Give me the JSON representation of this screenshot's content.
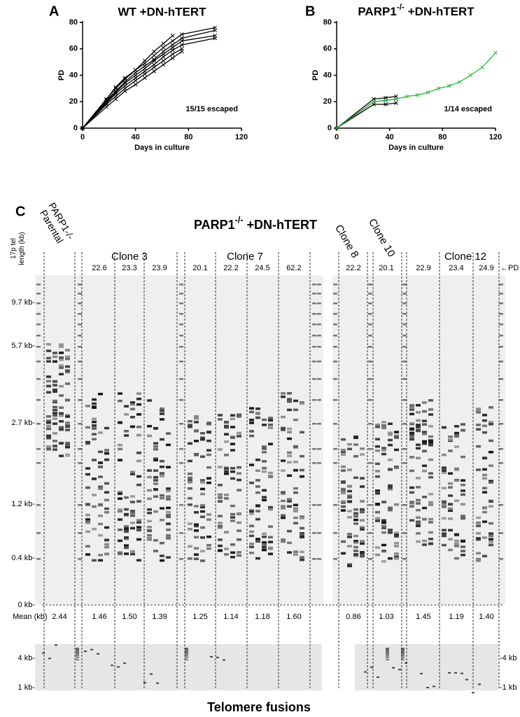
{
  "chart_data": [
    {
      "type": "line",
      "panel_label": "A",
      "title": "WT +DN-hTERT",
      "x_label": "Days in culture",
      "y_label": "PD",
      "annotation": "15/15 escaped",
      "x": [
        0,
        18,
        25,
        32,
        40,
        47,
        54,
        61,
        68,
        75,
        100
      ],
      "xlim": [
        0,
        120
      ],
      "xticks": [
        0,
        40,
        80,
        120
      ],
      "ylim": [
        0,
        80
      ],
      "yticks": [
        0,
        20,
        40,
        60,
        80
      ],
      "series": [
        {
          "color": "#000000",
          "values": [
            0,
            22,
            30,
            37,
            44,
            49,
            55,
            61,
            66,
            71,
            76
          ]
        },
        {
          "color": "#000000",
          "values": [
            0,
            21,
            28,
            35,
            42,
            47,
            52,
            58,
            63,
            68,
            74
          ]
        },
        {
          "color": "#000000",
          "values": [
            0,
            20,
            27,
            34,
            40,
            45,
            51,
            56,
            61,
            66,
            70
          ]
        },
        {
          "color": "#000000",
          "values": [
            0,
            19,
            26,
            32,
            38,
            43,
            48,
            54,
            59,
            63,
            68
          ]
        },
        {
          "color": "#000000",
          "values": [
            0,
            22,
            31,
            38,
            44,
            51,
            58,
            64,
            70,
            null,
            null
          ]
        },
        {
          "color": "#000000",
          "values": [
            0,
            18,
            24,
            30,
            36,
            41,
            46,
            51,
            56,
            60,
            null
          ]
        },
        {
          "color": "#000000",
          "values": [
            0,
            16,
            22,
            28,
            33,
            38,
            43,
            48,
            53,
            58,
            null
          ]
        }
      ]
    },
    {
      "type": "line",
      "panel_label": "B",
      "title_parts": [
        "PARP1",
        "-/-",
        " +DN-hTERT"
      ],
      "x_label": "Days in culture",
      "y_label": "PD",
      "annotation": "1/14 escaped",
      "x": [
        0,
        28,
        37,
        45,
        53,
        61,
        69,
        77,
        85,
        93,
        101,
        110,
        120
      ],
      "xlim": [
        0,
        120
      ],
      "xticks": [
        0,
        40,
        80,
        120
      ],
      "ylim": [
        0,
        80
      ],
      "yticks": [
        0,
        20,
        40,
        60,
        80
      ],
      "series": [
        {
          "color": "#000000",
          "values": [
            0,
            22,
            23,
            24,
            null,
            null,
            null,
            null,
            null,
            null,
            null,
            null,
            null
          ]
        },
        {
          "color": "#000000",
          "values": [
            0,
            20,
            21,
            22,
            null,
            null,
            null,
            null,
            null,
            null,
            null,
            null,
            null
          ]
        },
        {
          "color": "#000000",
          "values": [
            0,
            18,
            18,
            19,
            null,
            null,
            null,
            null,
            null,
            null,
            null,
            null,
            null
          ]
        },
        {
          "color": "#2db83d",
          "values": [
            0,
            20,
            21,
            22,
            24,
            25,
            27,
            30,
            32,
            35,
            40,
            46,
            57
          ]
        }
      ]
    }
  ],
  "panel_c": {
    "panel_label": "C",
    "title_parts": [
      "PARP1",
      "-/-",
      " +DN-hTERT"
    ],
    "y_axis_label": [
      "17p tel",
      "length (kb)"
    ],
    "parental_label": [
      "PARP1-/-",
      "Parental"
    ],
    "groups": [
      {
        "label": "Clone 3",
        "color": "#e8262a"
      },
      {
        "label": "Clone 7",
        "color": "#2db83d"
      },
      {
        "label": "Clone 8",
        "color": "#e8262a"
      },
      {
        "label": "Clone 10",
        "color": "#e8262a"
      },
      {
        "label": "Clone 12",
        "color": "#e8262a"
      }
    ],
    "pd_marker": "←PD",
    "pd_values": [
      "22.6",
      "23.3",
      "23.9",
      "20.1",
      "22.2",
      "24.5",
      "62.2",
      "22.2",
      "20.1",
      "22.9",
      "23.4",
      "24.9"
    ],
    "size_labels": [
      "9.7 kb-",
      "5.7 kb-",
      "2.7 kb-",
      "1.2 kb-",
      "0.4 kb-",
      "0 kb-"
    ],
    "mean_label": "Mean (kb)",
    "means": [
      "2.44",
      "1.46",
      "1.50",
      "1.39",
      "1.25",
      "1.14",
      "1.18",
      "1.60",
      "0.86",
      "1.03",
      "1.45",
      "1.19",
      "1.40"
    ],
    "fusion_left_labels": [
      "4 kb-",
      "1 kb-"
    ],
    "fusion_right_labels": [
      "-4 kb",
      "-1 kb"
    ],
    "fusion_title": "Telomere fusions"
  }
}
